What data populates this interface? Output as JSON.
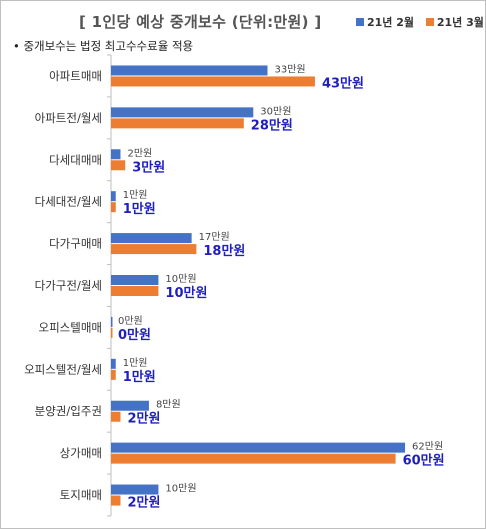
{
  "title": "[ 1인당 예상 중개보수 (단위:만원) ]",
  "note": "• 중개보수는 법정 최고수수료율 적용",
  "colors": {
    "series_a": "#4472c4",
    "series_b": "#ed7d31",
    "label_b": "#1f1fbf",
    "axis": "#bfbfbf"
  },
  "chart_data": {
    "type": "bar",
    "orientation": "horizontal",
    "title": "[ 1인당 예상 중개보수 (단위:만원) ]",
    "categories": [
      "아파트매매",
      "아파트전/월세",
      "다세대매매",
      "다세대전/월세",
      "다가구매매",
      "다가구전/월세",
      "오피스텔매매",
      "오피스텔전/월세",
      "분양권/입주권",
      "상가매매",
      "토지매매"
    ],
    "series": [
      {
        "name": "21년 2월",
        "values": [
          33,
          30,
          2,
          1,
          17,
          10,
          0,
          1,
          8,
          62,
          10
        ],
        "labels": [
          "33만원",
          "30만원",
          "2만원",
          "1만원",
          "17만원",
          "10만원",
          "0만원",
          "1만원",
          "8만원",
          "62만원",
          "10만원"
        ]
      },
      {
        "name": "21년 3월",
        "values": [
          43,
          28,
          3,
          1,
          18,
          10,
          0,
          1,
          2,
          60,
          2
        ],
        "labels": [
          "43만원",
          "28만원",
          "3만원",
          "1만원",
          "18만원",
          "10만원",
          "0만원",
          "1만원",
          "2만원",
          "60만원",
          "2만원"
        ]
      }
    ],
    "xlim": [
      0,
      70
    ],
    "legend_position": "top-right",
    "grid": false
  }
}
